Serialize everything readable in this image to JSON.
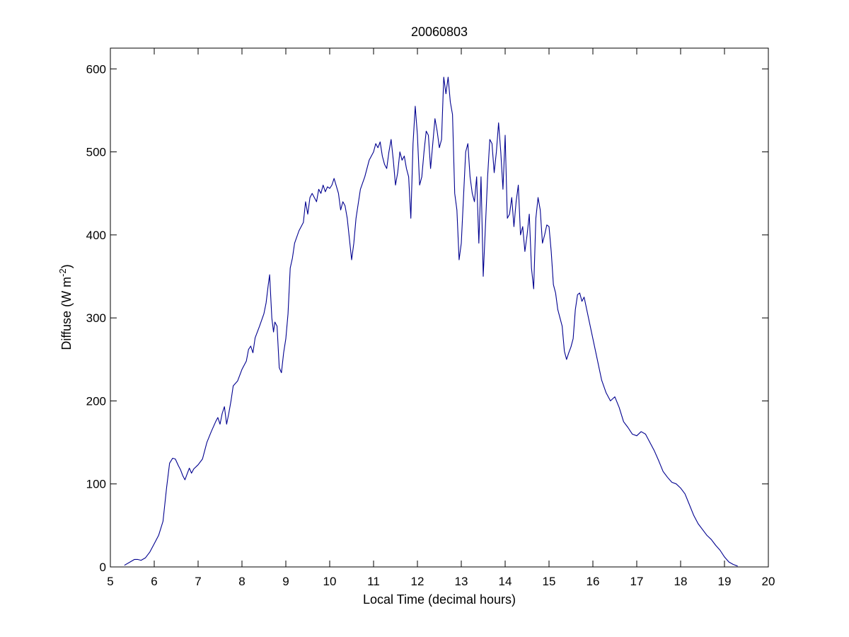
{
  "chart_data": {
    "type": "line",
    "title": "20060803",
    "xlabel": "Local Time (decimal hours)",
    "ylabel": {
      "prefix": "Diffuse (W m",
      "superscript": "-2",
      "suffix": ")"
    },
    "xlim": [
      5,
      20
    ],
    "ylim": [
      0,
      625
    ],
    "xticks": [
      5,
      6,
      7,
      8,
      9,
      10,
      11,
      12,
      13,
      14,
      15,
      16,
      17,
      18,
      19,
      20
    ],
    "yticks": [
      0,
      100,
      200,
      300,
      400,
      500,
      600
    ],
    "grid": false,
    "legend": "none",
    "series_color": "#00008f",
    "series": [
      {
        "x": [
          5.32,
          5.45,
          5.55,
          5.62,
          5.7,
          5.8,
          5.9,
          6.0,
          6.1,
          6.2,
          6.28,
          6.35,
          6.42,
          6.48,
          6.55,
          6.6,
          6.65,
          6.7,
          6.75,
          6.8,
          6.85,
          6.9,
          7.0,
          7.1,
          7.2,
          7.3,
          7.4,
          7.45,
          7.5,
          7.55,
          7.6,
          7.65,
          7.7,
          7.75,
          7.8,
          7.9,
          8.0,
          8.1,
          8.15,
          8.2,
          8.25,
          8.3,
          8.4,
          8.5,
          8.55,
          8.6,
          8.63,
          8.68,
          8.72,
          8.75,
          8.8,
          8.85,
          8.9,
          8.95,
          9.0,
          9.05,
          9.1,
          9.15,
          9.2,
          9.3,
          9.4,
          9.45,
          9.5,
          9.55,
          9.6,
          9.7,
          9.75,
          9.8,
          9.85,
          9.9,
          9.95,
          10.0,
          10.05,
          10.1,
          10.2,
          10.25,
          10.3,
          10.35,
          10.4,
          10.45,
          10.5,
          10.55,
          10.6,
          10.7,
          10.8,
          10.9,
          11.0,
          11.05,
          11.1,
          11.15,
          11.2,
          11.25,
          11.3,
          11.35,
          11.4,
          11.45,
          11.5,
          11.55,
          11.6,
          11.65,
          11.7,
          11.75,
          11.8,
          11.85,
          11.9,
          11.95,
          12.0,
          12.05,
          12.1,
          12.15,
          12.2,
          12.25,
          12.3,
          12.35,
          12.4,
          12.45,
          12.5,
          12.55,
          12.6,
          12.65,
          12.7,
          12.75,
          12.8,
          12.85,
          12.9,
          12.95,
          13.0,
          13.05,
          13.1,
          13.15,
          13.2,
          13.25,
          13.3,
          13.35,
          13.4,
          13.45,
          13.5,
          13.55,
          13.6,
          13.65,
          13.7,
          13.75,
          13.8,
          13.85,
          13.9,
          13.95,
          14.0,
          14.05,
          14.1,
          14.15,
          14.2,
          14.25,
          14.3,
          14.35,
          14.4,
          14.45,
          14.5,
          14.55,
          14.6,
          14.65,
          14.7,
          14.75,
          14.8,
          14.85,
          14.9,
          14.95,
          15.0,
          15.05,
          15.1,
          15.15,
          15.2,
          15.25,
          15.3,
          15.35,
          15.4,
          15.45,
          15.5,
          15.55,
          15.6,
          15.65,
          15.7,
          15.75,
          15.8,
          15.9,
          16.0,
          16.1,
          16.2,
          16.3,
          16.4,
          16.5,
          16.6,
          16.7,
          16.8,
          16.9,
          17.0,
          17.1,
          17.2,
          17.3,
          17.4,
          17.5,
          17.6,
          17.7,
          17.8,
          17.9,
          18.0,
          18.1,
          18.2,
          18.3,
          18.4,
          18.5,
          18.6,
          18.7,
          18.8,
          18.9,
          19.0,
          19.1,
          19.2,
          19.3
        ],
        "y": [
          2,
          6,
          9,
          9,
          8,
          11,
          18,
          28,
          38,
          55,
          95,
          125,
          131,
          130,
          122,
          117,
          110,
          105,
          112,
          119,
          113,
          118,
          123,
          130,
          150,
          163,
          175,
          180,
          172,
          185,
          193,
          172,
          185,
          200,
          218,
          224,
          238,
          248,
          262,
          266,
          258,
          276,
          290,
          305,
          318,
          340,
          352,
          300,
          283,
          295,
          290,
          240,
          234,
          258,
          275,
          305,
          360,
          372,
          390,
          405,
          415,
          440,
          425,
          445,
          450,
          440,
          455,
          450,
          460,
          452,
          458,
          456,
          460,
          468,
          450,
          430,
          440,
          435,
          420,
          395,
          370,
          390,
          420,
          455,
          470,
          490,
          500,
          510,
          505,
          512,
          495,
          485,
          480,
          500,
          515,
          490,
          460,
          475,
          500,
          490,
          495,
          480,
          470,
          420,
          510,
          555,
          520,
          460,
          470,
          500,
          525,
          520,
          480,
          510,
          540,
          525,
          505,
          515,
          590,
          570,
          590,
          560,
          545,
          450,
          430,
          370,
          390,
          445,
          500,
          510,
          470,
          450,
          440,
          470,
          390,
          470,
          350,
          410,
          470,
          515,
          510,
          475,
          500,
          535,
          500,
          455,
          520,
          420,
          425,
          445,
          410,
          440,
          460,
          400,
          410,
          380,
          400,
          425,
          360,
          335,
          420,
          445,
          430,
          390,
          400,
          412,
          410,
          380,
          340,
          330,
          310,
          300,
          290,
          260,
          250,
          258,
          265,
          275,
          310,
          328,
          330,
          320,
          325,
          300,
          275,
          250,
          225,
          210,
          200,
          205,
          192,
          175,
          168,
          160,
          158,
          163,
          160,
          150,
          140,
          128,
          115,
          108,
          102,
          100,
          95,
          88,
          75,
          62,
          52,
          45,
          38,
          33,
          26,
          20,
          12,
          6,
          3,
          1
        ]
      }
    ]
  }
}
